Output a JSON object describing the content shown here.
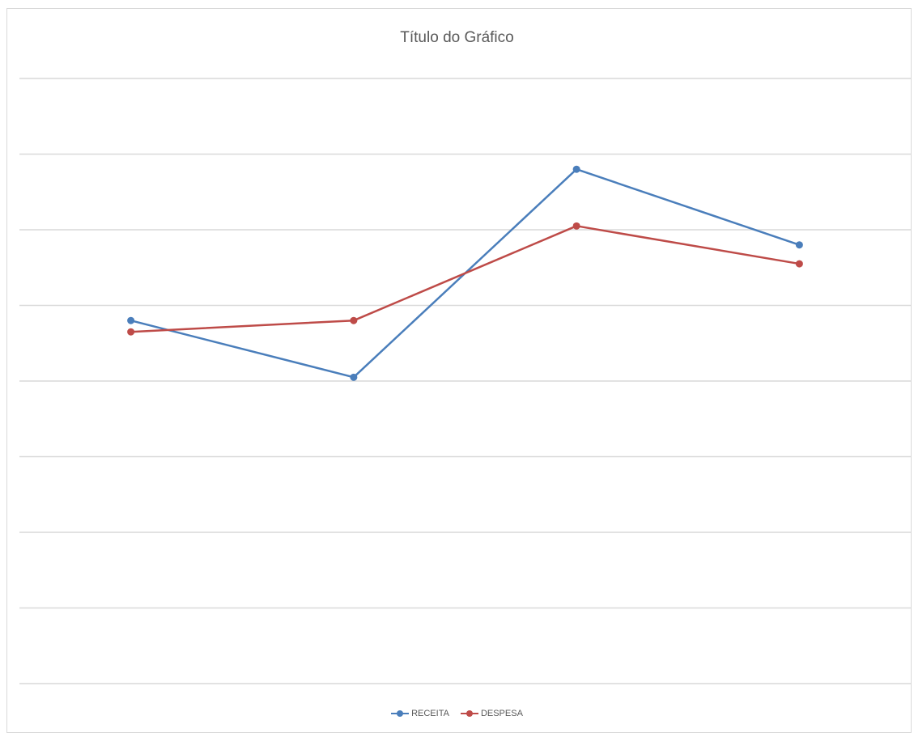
{
  "chart_data": {
    "type": "line",
    "title": "Título do Gráfico",
    "categories": [
      "",
      "",
      "",
      ""
    ],
    "series": [
      {
        "name": "RECEITA",
        "color": "#4a7ebb",
        "values": [
          4.8,
          4.05,
          6.8,
          5.8
        ]
      },
      {
        "name": "DESPESA",
        "color": "#be4b48",
        "values": [
          4.65,
          4.8,
          6.05,
          5.55
        ]
      }
    ],
    "ylim": [
      0,
      8
    ],
    "gridlines": [
      0,
      1,
      2,
      3,
      4,
      5,
      6,
      7
    ],
    "grid": true,
    "xlabel": "",
    "ylabel": "",
    "legend": "bottom",
    "axis_labels_visible": false
  }
}
